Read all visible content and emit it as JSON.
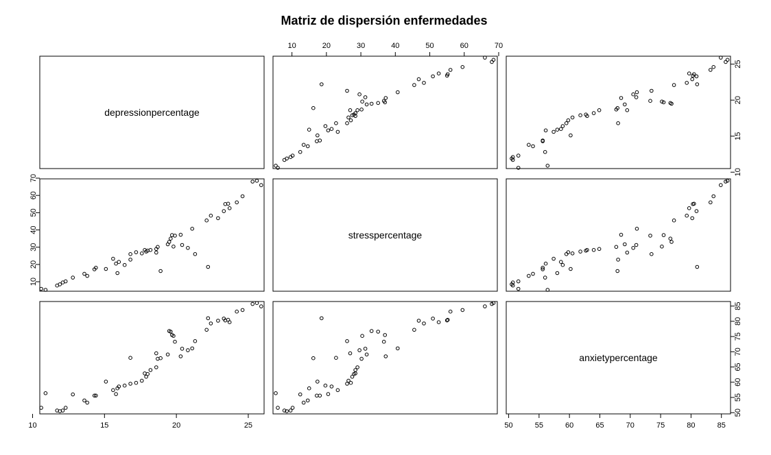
{
  "chart_data": {
    "type": "scatter",
    "title": "Matriz de dispersión enfermedades",
    "variables": [
      "depressionpercentage",
      "stresspercentage",
      "anxietypercentage"
    ],
    "axes": {
      "depressionpercentage": {
        "range": [
          10.5,
          26.1
        ],
        "ticks": [
          10,
          15,
          20,
          25
        ]
      },
      "stresspercentage": {
        "range": [
          4.5,
          69.6
        ],
        "ticks": [
          10,
          20,
          30,
          40,
          50,
          60,
          70
        ]
      },
      "anxietypercentage": {
        "range": [
          49.6,
          86.5
        ],
        "ticks": [
          50,
          55,
          60,
          65,
          70,
          75,
          80,
          85
        ]
      }
    },
    "points": {
      "depression": [
        10.6,
        10.9,
        11.7,
        11.9,
        12.1,
        12.3,
        12.8,
        13.6,
        13.8,
        14.3,
        14.4,
        15.1,
        15.6,
        15.8,
        15.9,
        16.0,
        16.4,
        16.8,
        17.2,
        17.6,
        17.8,
        17.9,
        18.0,
        18.2,
        18.6,
        18.7,
        18.9,
        19.4,
        19.5,
        19.6,
        19.7,
        19.8,
        19.9,
        20.3,
        20.8,
        21.1,
        22.1,
        22.4,
        22.9,
        23.3,
        23.4,
        23.6,
        23.7,
        24.2,
        24.6,
        25.3,
        25.6,
        25.9,
        16.8,
        18.6,
        20.4,
        21.3,
        22.2
      ],
      "stress": [
        5.9,
        5.3,
        7.8,
        8.5,
        9.6,
        10.2,
        12.4,
        14.6,
        13.4,
        17.2,
        18.1,
        17.4,
        23.3,
        20.5,
        15.0,
        21.5,
        19.7,
        26.0,
        27.1,
        26.4,
        28.4,
        27.5,
        28.0,
        28.4,
        29.0,
        30.2,
        16.2,
        31.7,
        33.1,
        35.0,
        37.0,
        30.4,
        36.7,
        37.2,
        29.6,
        40.7,
        45.5,
        48.3,
        46.8,
        50.9,
        55.0,
        55.2,
        52.6,
        56.0,
        59.5,
        68.0,
        68.5,
        66.0,
        22.8,
        26.9,
        31.3,
        26.0,
        18.6
      ],
      "anxiety": [
        51.6,
        56.4,
        50.7,
        50.5,
        50.7,
        51.6,
        56.0,
        54.0,
        53.3,
        55.6,
        55.6,
        60.2,
        57.4,
        56.1,
        58.0,
        58.6,
        58.9,
        59.5,
        59.8,
        60.5,
        62.9,
        61.8,
        62.7,
        64.0,
        64.9,
        67.7,
        67.9,
        69.1,
        76.8,
        76.6,
        75.5,
        75.2,
        73.3,
        68.5,
        70.5,
        71.1,
        77.2,
        79.3,
        80.2,
        80.9,
        80.3,
        80.5,
        79.7,
        83.2,
        83.7,
        85.7,
        86.0,
        84.9,
        68.0,
        69.5,
        71.0,
        73.5,
        81.0
      ]
    }
  }
}
